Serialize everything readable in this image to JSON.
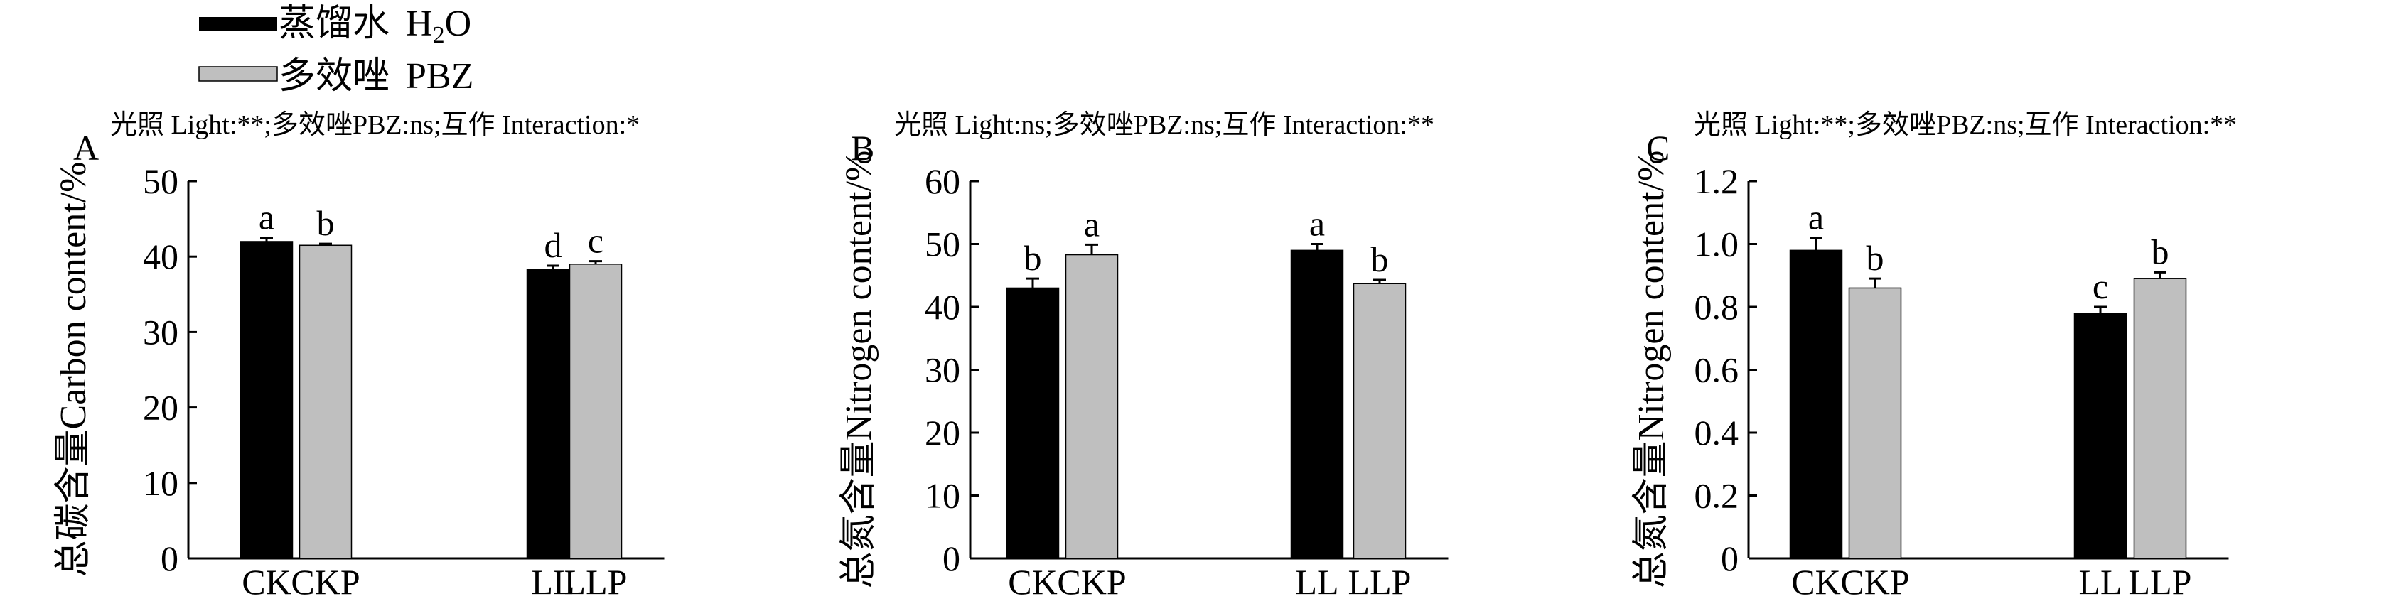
{
  "legend": {
    "items": [
      {
        "label_cn": "蒸馏水",
        "label_en": "H",
        "subscript": "2",
        "suffix": "O",
        "color": "#000000"
      },
      {
        "label_cn": "多效唑",
        "label_en": "PBZ",
        "subscript": "",
        "suffix": "",
        "color": "#bfbfbf"
      }
    ]
  },
  "chart_data": [
    {
      "type": "bar",
      "panel_letter": "A",
      "stats": "光照 Light:**;多效唑PBZ:ns;互作 Interaction:*",
      "ylabel_cn": "总碳含量",
      "ylabel_en": "Carbon content/%",
      "ylim": [
        0,
        50
      ],
      "yticks": [
        0,
        10,
        20,
        30,
        40,
        50
      ],
      "ytick_labels": [
        "0",
        "10",
        "20",
        "30",
        "40",
        "50"
      ],
      "categories": [
        "CK",
        "CKP",
        "LL",
        "LLP"
      ],
      "values": [
        42.0,
        41.5,
        38.3,
        39.0
      ],
      "errors": [
        0.5,
        0.2,
        0.5,
        0.4
      ],
      "letters": [
        "a",
        "b",
        "d",
        "c"
      ],
      "colors": [
        "#000000",
        "#bfbfbf",
        "#000000",
        "#bfbfbf"
      ]
    },
    {
      "type": "bar",
      "panel_letter": "B",
      "stats": "光照 Light:ns;多效唑PBZ:ns;互作 Interaction:**",
      "ylabel_cn": "总氮含量",
      "ylabel_en": "Nitrogen content/%",
      "ylim": [
        0,
        60
      ],
      "yticks": [
        0,
        10,
        20,
        30,
        40,
        50,
        60
      ],
      "ytick_labels": [
        "0",
        "10",
        "20",
        "30",
        "40",
        "50",
        "60"
      ],
      "categories": [
        "CK",
        "CKP",
        "LL",
        "LLP"
      ],
      "values": [
        43.0,
        48.3,
        49.0,
        43.7
      ],
      "errors": [
        1.5,
        1.6,
        1.0,
        0.6
      ],
      "letters": [
        "b",
        "a",
        "a",
        "b"
      ],
      "colors": [
        "#000000",
        "#bfbfbf",
        "#000000",
        "#bfbfbf"
      ]
    },
    {
      "type": "bar",
      "panel_letter": "C",
      "stats": "光照 Light:**;多效唑PBZ:ns;互作 Interaction:**",
      "ylabel_cn": "总氮含量",
      "ylabel_en": "Nitrogen content/%",
      "ylim": [
        0,
        1.2
      ],
      "yticks": [
        0,
        0.2,
        0.4,
        0.6,
        0.8,
        1.0,
        1.2
      ],
      "ytick_labels": [
        "0",
        "0.2",
        "0.4",
        "0.6",
        "0.8",
        "1.0",
        "1.2"
      ],
      "categories": [
        "CK",
        "CKP",
        "LL",
        "LLP"
      ],
      "values": [
        0.98,
        0.86,
        0.78,
        0.89
      ],
      "errors": [
        0.04,
        0.03,
        0.02,
        0.02
      ],
      "letters": [
        "a",
        "b",
        "c",
        "b"
      ],
      "colors": [
        "#000000",
        "#bfbfbf",
        "#000000",
        "#bfbfbf"
      ]
    }
  ]
}
